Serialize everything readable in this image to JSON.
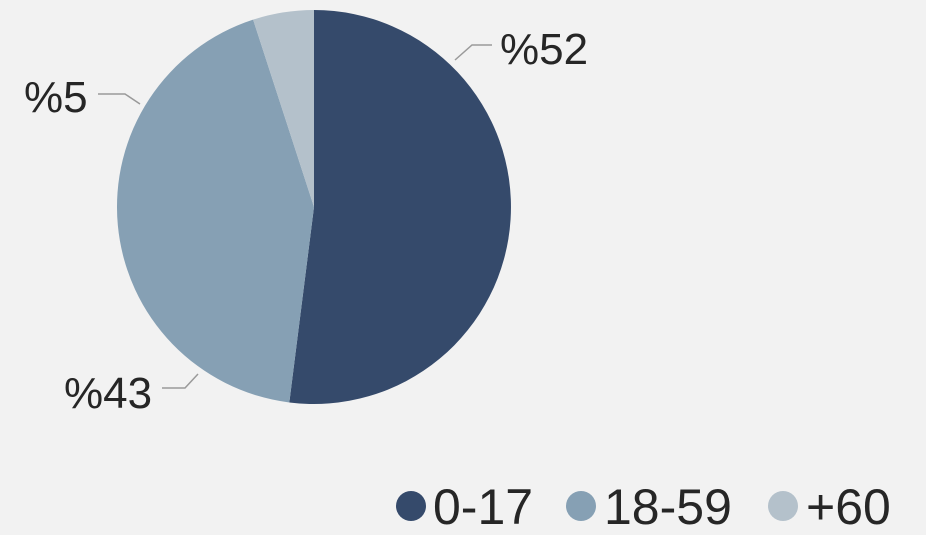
{
  "chart_data": {
    "type": "pie",
    "categories": [
      "0-17",
      "18-59",
      "+60"
    ],
    "values": [
      52,
      43,
      5
    ],
    "data_labels": [
      "%52",
      "%43",
      "%5"
    ],
    "colors": [
      "#354a6b",
      "#86a0b4",
      "#b4c1cb"
    ],
    "legend": {
      "entries": [
        "0-17",
        "18-59",
        "+60"
      ],
      "position": "bottom-right"
    },
    "title": "",
    "start_angle_deg": 270,
    "direction": "clockwise"
  }
}
